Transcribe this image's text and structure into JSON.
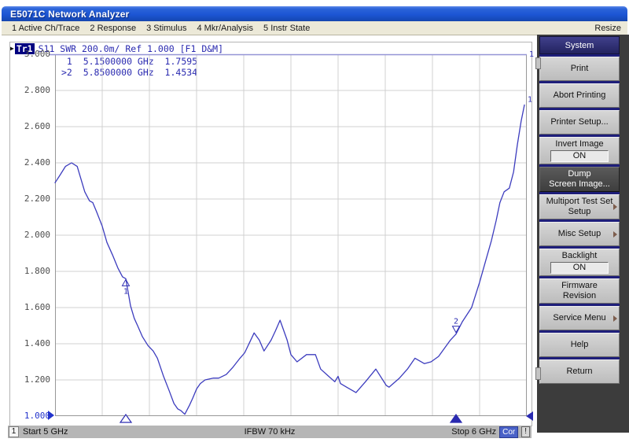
{
  "window": {
    "title": "E5071C Network Analyzer"
  },
  "menu_bar": {
    "items": [
      "1 Active Ch/Trace",
      "2 Response",
      "3 Stimulus",
      "4 Mkr/Analysis",
      "5 Instr State"
    ],
    "resize_label": "Resize"
  },
  "trace_header": {
    "badge": "Tr1",
    "info": "S11 SWR 200.0m/ Ref 1.000 [F1 D&M]"
  },
  "marker_readout": [
    {
      "label": " 1",
      "stimulus": "5.1500000 GHz",
      "value": "1.7595"
    },
    {
      "label": ">2",
      "stimulus": "5.8500000 GHz",
      "value": "1.4534"
    }
  ],
  "chart_data": {
    "type": "line",
    "x_unit": "GHz",
    "x_range": [
      5,
      6
    ],
    "x_divisions": 10,
    "y_range": [
      1,
      3
    ],
    "y_tick_step": 0.2,
    "y_tick_labels": [
      "3.000",
      "2.800",
      "2.600",
      "2.400",
      "2.200",
      "2.000",
      "1.800",
      "1.600",
      "1.400",
      "1.200",
      "1.000"
    ],
    "reference_level": 1.0,
    "grid": true,
    "trace_number": "1",
    "series": [
      {
        "name": "Tr1 S11 SWR",
        "points": [
          [
            5.0,
            2.29
          ],
          [
            5.01,
            2.33
          ],
          [
            5.022,
            2.38
          ],
          [
            5.035,
            2.4
          ],
          [
            5.047,
            2.38
          ],
          [
            5.055,
            2.31
          ],
          [
            5.063,
            2.24
          ],
          [
            5.073,
            2.19
          ],
          [
            5.08,
            2.18
          ],
          [
            5.088,
            2.13
          ],
          [
            5.1,
            2.05
          ],
          [
            5.11,
            1.96
          ],
          [
            5.122,
            1.89
          ],
          [
            5.133,
            1.82
          ],
          [
            5.143,
            1.77
          ],
          [
            5.15,
            1.7595
          ],
          [
            5.16,
            1.61
          ],
          [
            5.168,
            1.54
          ],
          [
            5.175,
            1.5
          ],
          [
            5.185,
            1.44
          ],
          [
            5.197,
            1.39
          ],
          [
            5.208,
            1.36
          ],
          [
            5.217,
            1.32
          ],
          [
            5.23,
            1.22
          ],
          [
            5.242,
            1.14
          ],
          [
            5.252,
            1.07
          ],
          [
            5.26,
            1.04
          ],
          [
            5.267,
            1.03
          ],
          [
            5.275,
            1.01
          ],
          [
            5.285,
            1.06
          ],
          [
            5.292,
            1.1
          ],
          [
            5.3,
            1.15
          ],
          [
            5.308,
            1.18
          ],
          [
            5.318,
            1.2
          ],
          [
            5.335,
            1.21
          ],
          [
            5.347,
            1.21
          ],
          [
            5.363,
            1.23
          ],
          [
            5.377,
            1.27
          ],
          [
            5.392,
            1.32
          ],
          [
            5.402,
            1.35
          ],
          [
            5.413,
            1.41
          ],
          [
            5.422,
            1.46
          ],
          [
            5.433,
            1.42
          ],
          [
            5.443,
            1.36
          ],
          [
            5.458,
            1.42
          ],
          [
            5.467,
            1.47
          ],
          [
            5.477,
            1.53
          ],
          [
            5.492,
            1.42
          ],
          [
            5.5,
            1.34
          ],
          [
            5.513,
            1.3
          ],
          [
            5.533,
            1.34
          ],
          [
            5.552,
            1.34
          ],
          [
            5.563,
            1.26
          ],
          [
            5.58,
            1.22
          ],
          [
            5.593,
            1.19
          ],
          [
            5.6,
            1.22
          ],
          [
            5.605,
            1.18
          ],
          [
            5.618,
            1.16
          ],
          [
            5.638,
            1.13
          ],
          [
            5.658,
            1.19
          ],
          [
            5.68,
            1.26
          ],
          [
            5.702,
            1.17
          ],
          [
            5.708,
            1.16
          ],
          [
            5.73,
            1.21
          ],
          [
            5.747,
            1.26
          ],
          [
            5.763,
            1.32
          ],
          [
            5.783,
            1.29
          ],
          [
            5.797,
            1.3
          ],
          [
            5.813,
            1.33
          ],
          [
            5.838,
            1.42
          ],
          [
            5.85,
            1.4534
          ],
          [
            5.863,
            1.52
          ],
          [
            5.883,
            1.6
          ],
          [
            5.9,
            1.74
          ],
          [
            5.913,
            1.86
          ],
          [
            5.925,
            1.97
          ],
          [
            5.935,
            2.08
          ],
          [
            5.943,
            2.18
          ],
          [
            5.952,
            2.24
          ],
          [
            5.963,
            2.26
          ],
          [
            5.972,
            2.35
          ],
          [
            5.98,
            2.5
          ],
          [
            5.988,
            2.63
          ],
          [
            5.995,
            2.72
          ]
        ]
      }
    ],
    "markers": [
      {
        "id": "1",
        "x": 5.15,
        "y": 1.7595,
        "active": false,
        "glyph": "open-up-triangle-number-below"
      },
      {
        "id": "2",
        "x": 5.85,
        "y": 1.4534,
        "active": true,
        "glyph": "number-above-open-down-triangle"
      }
    ]
  },
  "status_bar": {
    "channel": "1",
    "start": "Start 5 GHz",
    "ifbw": "IFBW 70 kHz",
    "stop": "Stop 6 GHz",
    "correction": "Cor",
    "alert": "!"
  },
  "sidebar": {
    "title": "System",
    "buttons": [
      {
        "label": "Print"
      },
      {
        "label": "Abort Printing"
      },
      {
        "label": "Printer Setup..."
      },
      {
        "label": "Invert Image",
        "state": "ON"
      },
      {
        "label": "Dump\nScreen Image...",
        "variant": "dark"
      },
      {
        "label": "Multiport Test Set\nSetup",
        "submenu": true
      },
      {
        "label": "Misc Setup",
        "submenu": true
      },
      {
        "label": "Backlight",
        "state": "ON"
      },
      {
        "label": "Firmware\nRevision"
      },
      {
        "label": "Service Menu",
        "submenu": true
      },
      {
        "label": "Help"
      },
      {
        "label": "Return"
      }
    ]
  },
  "colors": {
    "titlebar_blue": "#1c55d4",
    "trace": "#3c3cbe",
    "grid_line": "#d0d0d0",
    "graticule_border": "#979797",
    "top_scale_line": "#9494d6",
    "marker_text": "#2a2ab0",
    "ref_label_blue": "#2233cc",
    "cor_badge": "#4a62c8",
    "status_bar_bg": "#b6b6b6",
    "sidebar_bg": "#3c3c3c"
  }
}
